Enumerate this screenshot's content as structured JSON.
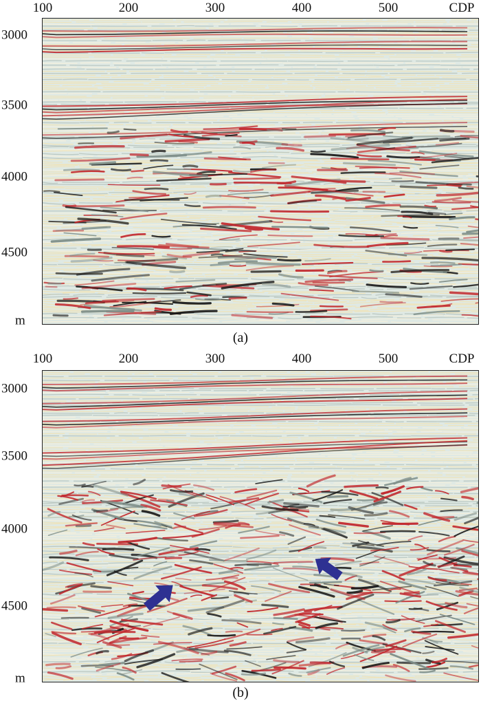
{
  "panel_a": {
    "x_ticks": [
      "100",
      "200",
      "300",
      "400",
      "500"
    ],
    "x_unit": "CDP",
    "y_ticks": [
      "3000",
      "3500",
      "4000",
      "4500"
    ],
    "y_unit": "m",
    "caption": "(a)"
  },
  "panel_b": {
    "x_ticks": [
      "100",
      "200",
      "300",
      "400",
      "500"
    ],
    "x_unit": "CDP",
    "y_ticks": [
      "3000",
      "3500",
      "4000",
      "4500"
    ],
    "y_unit": "m",
    "caption": "(b)",
    "annotations": [
      {
        "name": "arrow-left-lower",
        "direction": "up-right",
        "color": "#2e3192"
      },
      {
        "name": "arrow-right-upper",
        "direction": "up-left",
        "color": "#2e3192"
      }
    ]
  },
  "colors": {
    "trough": "#c1272d",
    "peak": "#1a1a1a",
    "background": "#dfe9e4",
    "pale": "#efe3b8",
    "arrow": "#2e3192"
  }
}
